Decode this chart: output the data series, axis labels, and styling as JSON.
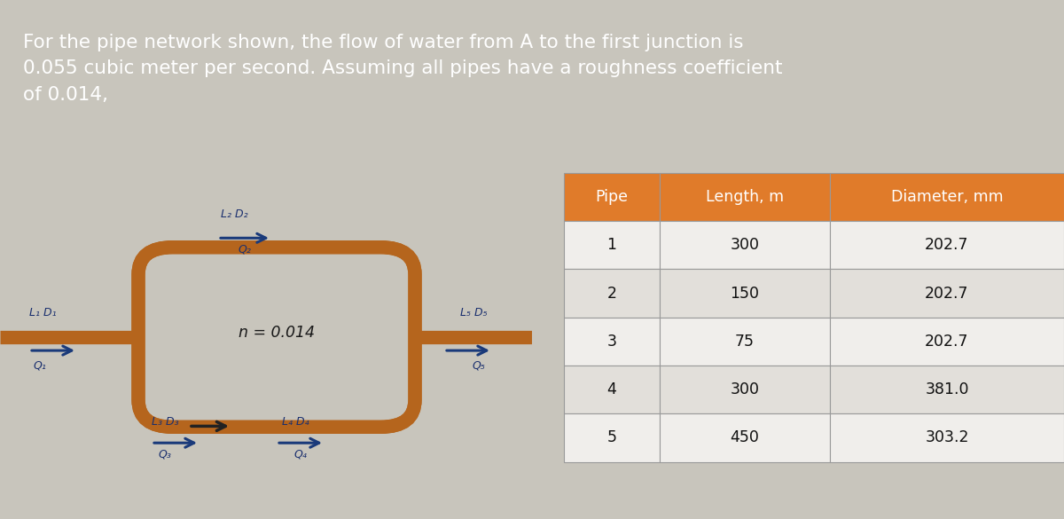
{
  "title_text": "For the pipe network shown, the flow of water from A to the first junction is\n0.055 cubic meter per second. Assuming all pipes have a roughness coefficient\nof 0.014,",
  "title_bg_color": "#9e2a2b",
  "title_text_color": "#ffffff",
  "diagram_bg_color": "#c8c5bc",
  "pipe_color": "#8B4513",
  "pipe_color_inner": "#b5651d",
  "arrow_color": "#1a3a7a",
  "n_label": "n = 0.014",
  "pipe_labels": [
    "L₁ D₁",
    "L₂ D₂",
    "L₃ D₃",
    "L₄ D₄",
    "L₅ D₅"
  ],
  "q_labels": [
    "Q₁",
    "Q₂",
    "Q₃",
    "Q₄",
    "Q₅"
  ],
  "table_header": [
    "Pipe",
    "Length, m",
    "Diameter, mm"
  ],
  "table_header_bg": "#e07b2a",
  "table_data": [
    [
      1,
      300,
      202.7
    ],
    [
      2,
      150,
      202.7
    ],
    [
      3,
      75,
      202.7
    ],
    [
      4,
      300,
      381.0
    ],
    [
      5,
      450,
      303.2
    ]
  ],
  "table_row_bg1": "#f0eeeb",
  "table_row_bg2": "#e2dfda",
  "table_text_color": "#111111",
  "table_border_color": "#999999"
}
